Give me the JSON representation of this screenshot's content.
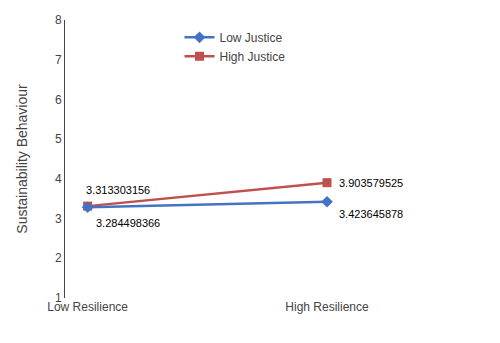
{
  "chart_data": {
    "type": "line",
    "categories": [
      "Low Resilience",
      "High Resilience"
    ],
    "series": [
      {
        "name": "High Justice",
        "color": "#C0504D",
        "marker": "square",
        "values": [
          3.313303156,
          3.903579525
        ]
      },
      {
        "name": "Low Justice",
        "color": "#4472C4",
        "marker": "diamond",
        "values": [
          3.284498366,
          3.423645878
        ]
      }
    ],
    "ylabel": "Sustainability Behaviour",
    "ylim": [
      1,
      8
    ],
    "yticks": [
      1,
      2,
      3,
      4,
      5,
      6,
      7,
      8
    ],
    "grid": false,
    "legend": "upper center",
    "data_labels": true
  }
}
